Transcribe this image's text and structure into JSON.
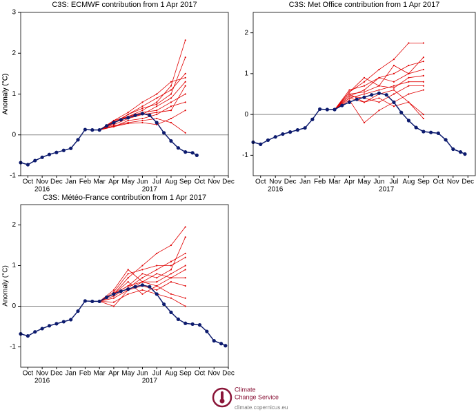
{
  "chart_data": [
    {
      "type": "line",
      "title": "C3S: ECMWF contribution from 1 Apr 2017",
      "ylabel": "Anomaly (°C)",
      "xlim": [
        -0.5,
        14
      ],
      "ylim": [
        -1,
        3
      ],
      "yticks": [
        -1,
        0,
        1,
        2,
        3
      ],
      "zero_line": true,
      "xticks": [
        {
          "value": 0,
          "label": "Oct"
        },
        {
          "value": 1,
          "label": "Nov"
        },
        {
          "value": 2,
          "label": "Dec"
        },
        {
          "value": 3,
          "label": "Jan"
        },
        {
          "value": 4,
          "label": "Feb"
        },
        {
          "value": 5,
          "label": "Mar"
        },
        {
          "value": 6,
          "label": "Apr"
        },
        {
          "value": 7,
          "label": "May"
        },
        {
          "value": 8,
          "label": "Jun"
        },
        {
          "value": 9,
          "label": "Jul"
        },
        {
          "value": 10,
          "label": "Aug"
        },
        {
          "value": 11,
          "label": "Sep"
        },
        {
          "value": 12,
          "label": "Oct"
        },
        {
          "value": 13,
          "label": "Nov"
        },
        {
          "value": 14,
          "label": "Dec"
        }
      ],
      "year_labels": [
        {
          "value": 1,
          "label": "2016"
        },
        {
          "value": 8.5,
          "label": "2017"
        }
      ],
      "series": [
        {
          "color": "#e00000",
          "x": [
            5,
            6,
            7,
            8,
            9,
            10,
            11
          ],
          "values": [
            0.12,
            0.35,
            0.45,
            0.6,
            0.8,
            1.2,
            2.32
          ]
        },
        {
          "color": "#e00000",
          "x": [
            5,
            6,
            7,
            8,
            9,
            10,
            11
          ],
          "values": [
            0.12,
            0.3,
            0.5,
            0.7,
            0.9,
            1.1,
            1.5
          ]
        },
        {
          "color": "#e00000",
          "x": [
            5,
            6,
            7,
            8,
            9,
            10,
            11
          ],
          "values": [
            0.12,
            0.25,
            0.4,
            0.5,
            0.7,
            0.9,
            1.3
          ]
        },
        {
          "color": "#e00000",
          "x": [
            5,
            6,
            7,
            8,
            9,
            10,
            11
          ],
          "values": [
            0.12,
            0.3,
            0.45,
            0.55,
            0.6,
            0.8,
            1.0
          ]
        },
        {
          "color": "#e00000",
          "x": [
            5,
            6,
            7,
            8,
            9,
            10,
            11
          ],
          "values": [
            0.12,
            0.2,
            0.35,
            0.4,
            0.5,
            0.7,
            0.8
          ]
        },
        {
          "color": "#e00000",
          "x": [
            5,
            6,
            7,
            8,
            9,
            10,
            11
          ],
          "values": [
            0.12,
            0.28,
            0.5,
            0.65,
            0.75,
            1.0,
            1.9
          ]
        },
        {
          "color": "#e00000",
          "x": [
            5,
            6,
            7,
            8,
            9,
            10,
            11
          ],
          "values": [
            0.12,
            0.22,
            0.3,
            0.35,
            0.4,
            0.3,
            0.05
          ]
        },
        {
          "color": "#e00000",
          "x": [
            5,
            6,
            7,
            8,
            9,
            10,
            11
          ],
          "values": [
            0.12,
            0.35,
            0.55,
            0.8,
            1.0,
            1.3,
            1.4
          ]
        },
        {
          "color": "#e00000",
          "x": [
            5,
            6,
            7,
            8,
            9,
            10,
            11
          ],
          "values": [
            0.12,
            0.2,
            0.28,
            0.3,
            0.25,
            0.4,
            0.6
          ]
        },
        {
          "color": "#e00000",
          "x": [
            5,
            6,
            7,
            8,
            9,
            10,
            11
          ],
          "values": [
            0.12,
            0.33,
            0.42,
            0.5,
            0.55,
            0.6,
            1.2
          ]
        },
        {
          "color": "#0d1b6e",
          "marker": true,
          "x": [
            -0.5,
            0,
            0.5,
            1,
            1.5,
            2,
            2.5,
            3,
            3.5,
            4,
            4.5,
            5,
            5.5,
            6,
            6.5,
            7,
            7.5,
            8,
            8.5,
            9,
            9.5,
            10,
            10.5,
            11,
            11.5,
            11.8
          ],
          "values": [
            -0.68,
            -0.73,
            -0.63,
            -0.55,
            -0.48,
            -0.43,
            -0.38,
            -0.33,
            -0.12,
            0.13,
            0.12,
            0.12,
            0.22,
            0.3,
            0.37,
            0.42,
            0.48,
            0.52,
            0.48,
            0.3,
            0.05,
            -0.15,
            -0.32,
            -0.42,
            -0.44,
            -0.5
          ]
        }
      ]
    },
    {
      "type": "line",
      "title": "C3S: Met Office contribution from 1 Apr 2017",
      "ylabel": "Anomaly (°C)",
      "xlim": [
        -0.5,
        14.5
      ],
      "ylim": [
        -1.5,
        2.5
      ],
      "yticks": [
        -1,
        0,
        1,
        2
      ],
      "zero_line": true,
      "xticks": [
        {
          "value": 0,
          "label": "Oct"
        },
        {
          "value": 1,
          "label": "Nov"
        },
        {
          "value": 2,
          "label": "Dec"
        },
        {
          "value": 3,
          "label": "Jan"
        },
        {
          "value": 4,
          "label": "Feb"
        },
        {
          "value": 5,
          "label": "Mar"
        },
        {
          "value": 6,
          "label": "Apr"
        },
        {
          "value": 7,
          "label": "May"
        },
        {
          "value": 8,
          "label": "Jun"
        },
        {
          "value": 9,
          "label": "Jul"
        },
        {
          "value": 10,
          "label": "Aug"
        },
        {
          "value": 11,
          "label": "Sep"
        },
        {
          "value": 12,
          "label": "Oct"
        },
        {
          "value": 13,
          "label": "Nov"
        },
        {
          "value": 14,
          "label": "Dec"
        }
      ],
      "year_labels": [
        {
          "value": 1,
          "label": "2016"
        },
        {
          "value": 8.5,
          "label": "2017"
        }
      ],
      "series": [
        {
          "color": "#e00000",
          "x": [
            5,
            6,
            7,
            8,
            9,
            10,
            11
          ],
          "values": [
            0.12,
            0.55,
            0.8,
            1.1,
            1.35,
            1.75,
            1.75
          ]
        },
        {
          "color": "#e00000",
          "x": [
            5,
            6,
            7,
            8,
            9,
            10,
            11
          ],
          "values": [
            0.12,
            0.45,
            0.6,
            0.9,
            1.0,
            1.2,
            1.3
          ]
        },
        {
          "color": "#e00000",
          "x": [
            5,
            6,
            7,
            8,
            9,
            10,
            11
          ],
          "values": [
            0.12,
            0.4,
            0.5,
            0.6,
            0.7,
            0.8,
            0.8
          ]
        },
        {
          "color": "#e00000",
          "x": [
            5,
            6,
            7,
            8,
            9,
            10,
            11
          ],
          "values": [
            0.12,
            0.5,
            0.3,
            0.4,
            0.2,
            0.3,
            0.0
          ]
        },
        {
          "color": "#e00000",
          "x": [
            5,
            6,
            7,
            8,
            9,
            10,
            11
          ],
          "values": [
            0.12,
            0.35,
            -0.2,
            0.1,
            0.3,
            0.5,
            0.6
          ]
        },
        {
          "color": "#e00000",
          "x": [
            5,
            6,
            7,
            8,
            9,
            10,
            11
          ],
          "values": [
            0.12,
            0.6,
            0.7,
            0.9,
            0.8,
            1.0,
            1.4
          ]
        },
        {
          "color": "#e00000",
          "x": [
            5,
            6,
            7,
            8,
            9,
            10,
            11
          ],
          "values": [
            0.12,
            0.45,
            0.4,
            0.3,
            0.5,
            0.7,
            0.7
          ]
        },
        {
          "color": "#e00000",
          "x": [
            5,
            6,
            7,
            8,
            9,
            10,
            11
          ],
          "values": [
            0.12,
            0.55,
            0.9,
            0.7,
            1.2,
            1.0,
            1.1
          ]
        },
        {
          "color": "#e00000",
          "x": [
            5,
            6,
            7,
            8,
            9,
            10,
            11
          ],
          "values": [
            0.12,
            0.4,
            0.3,
            0.5,
            0.6,
            0.3,
            -0.1
          ]
        },
        {
          "color": "#e00000",
          "x": [
            5,
            6,
            7,
            8,
            9,
            10,
            11
          ],
          "values": [
            0.12,
            0.5,
            0.55,
            0.7,
            0.65,
            0.9,
            0.95
          ]
        },
        {
          "color": "#0d1b6e",
          "marker": true,
          "x": [
            -0.5,
            0,
            0.5,
            1,
            1.5,
            2,
            2.5,
            3,
            3.5,
            4,
            4.5,
            5,
            5.5,
            6,
            6.5,
            7,
            7.5,
            8,
            8.5,
            9,
            9.5,
            10,
            10.5,
            11,
            11.5,
            12,
            12.5,
            13,
            13.5,
            13.8
          ],
          "values": [
            -0.68,
            -0.73,
            -0.63,
            -0.55,
            -0.48,
            -0.43,
            -0.38,
            -0.33,
            -0.12,
            0.13,
            0.12,
            0.12,
            0.22,
            0.3,
            0.37,
            0.42,
            0.48,
            0.52,
            0.48,
            0.3,
            0.05,
            -0.15,
            -0.32,
            -0.42,
            -0.44,
            -0.46,
            -0.62,
            -0.85,
            -0.92,
            -0.97
          ]
        }
      ]
    },
    {
      "type": "line",
      "title": "C3S: Météo-France contribution from 1 Apr 2017",
      "ylabel": "Anomaly (°C)",
      "xlim": [
        -0.5,
        14
      ],
      "ylim": [
        -1.5,
        2.5
      ],
      "yticks": [
        -1,
        0,
        1,
        2
      ],
      "zero_line": true,
      "xticks": [
        {
          "value": 0,
          "label": "Oct"
        },
        {
          "value": 1,
          "label": "Nov"
        },
        {
          "value": 2,
          "label": "Dec"
        },
        {
          "value": 3,
          "label": "Jan"
        },
        {
          "value": 4,
          "label": "Feb"
        },
        {
          "value": 5,
          "label": "Mar"
        },
        {
          "value": 6,
          "label": "Apr"
        },
        {
          "value": 7,
          "label": "May"
        },
        {
          "value": 8,
          "label": "Jun"
        },
        {
          "value": 9,
          "label": "Jul"
        },
        {
          "value": 10,
          "label": "Aug"
        },
        {
          "value": 11,
          "label": "Sep"
        },
        {
          "value": 12,
          "label": "Oct"
        },
        {
          "value": 13,
          "label": "Nov"
        },
        {
          "value": 14,
          "label": "Dec"
        }
      ],
      "year_labels": [
        {
          "value": 1,
          "label": "2016"
        },
        {
          "value": 8.5,
          "label": "2017"
        }
      ],
      "series": [
        {
          "color": "#e00000",
          "x": [
            5,
            6,
            7,
            8,
            9,
            10,
            11
          ],
          "values": [
            0.12,
            0.3,
            0.7,
            1.0,
            1.3,
            1.5,
            1.95
          ]
        },
        {
          "color": "#e00000",
          "x": [
            5,
            6,
            7,
            8,
            9,
            10,
            11
          ],
          "values": [
            0.12,
            0.0,
            0.4,
            0.6,
            0.5,
            0.7,
            0.9
          ]
        },
        {
          "color": "#e00000",
          "x": [
            5,
            6,
            7,
            8,
            9,
            10,
            11
          ],
          "values": [
            0.12,
            0.3,
            0.5,
            0.8,
            0.7,
            0.9,
            1.7
          ]
        },
        {
          "color": "#e00000",
          "x": [
            5,
            6,
            7,
            8,
            9,
            10,
            11
          ],
          "values": [
            0.12,
            0.35,
            0.8,
            0.9,
            1.0,
            1.0,
            1.2
          ]
        },
        {
          "color": "#e00000",
          "x": [
            5,
            6,
            7,
            8,
            9,
            10,
            11
          ],
          "values": [
            0.12,
            0.2,
            0.4,
            0.5,
            0.4,
            0.6,
            0.5
          ]
        },
        {
          "color": "#e00000",
          "x": [
            5,
            6,
            7,
            8,
            9,
            10,
            11
          ],
          "values": [
            0.12,
            0.3,
            0.6,
            0.3,
            0.5,
            0.3,
            0.2
          ]
        },
        {
          "color": "#e00000",
          "x": [
            5,
            6,
            7,
            8,
            9,
            10,
            11
          ],
          "values": [
            0.12,
            0.25,
            0.45,
            0.7,
            0.9,
            1.1,
            1.3
          ]
        },
        {
          "color": "#e00000",
          "x": [
            5,
            6,
            7,
            8,
            9,
            10,
            11
          ],
          "values": [
            0.12,
            0.4,
            0.9,
            0.6,
            0.8,
            0.7,
            0.7
          ]
        },
        {
          "color": "#e00000",
          "x": [
            5,
            6,
            7,
            8,
            9,
            10,
            11
          ],
          "values": [
            0.12,
            0.1,
            0.3,
            0.4,
            0.3,
            0.2,
            0.0
          ]
        },
        {
          "color": "#e00000",
          "x": [
            5,
            6,
            7,
            8,
            9,
            10,
            11
          ],
          "values": [
            0.12,
            0.3,
            0.5,
            0.6,
            0.6,
            0.8,
            1.0
          ]
        },
        {
          "color": "#0d1b6e",
          "marker": true,
          "x": [
            -0.5,
            0,
            0.5,
            1,
            1.5,
            2,
            2.5,
            3,
            3.5,
            4,
            4.5,
            5,
            5.5,
            6,
            6.5,
            7,
            7.5,
            8,
            8.5,
            9,
            9.5,
            10,
            10.5,
            11,
            11.5,
            12,
            12.5,
            13,
            13.5,
            13.8
          ],
          "values": [
            -0.68,
            -0.73,
            -0.63,
            -0.55,
            -0.48,
            -0.43,
            -0.38,
            -0.33,
            -0.12,
            0.13,
            0.12,
            0.12,
            0.22,
            0.3,
            0.37,
            0.42,
            0.48,
            0.52,
            0.48,
            0.3,
            0.05,
            -0.15,
            -0.32,
            -0.42,
            -0.44,
            -0.46,
            -0.62,
            -0.85,
            -0.92,
            -0.97
          ]
        }
      ]
    }
  ],
  "footer": {
    "brand": [
      "Climate",
      "Change Service"
    ],
    "url": "climate.copernicus.eu"
  }
}
